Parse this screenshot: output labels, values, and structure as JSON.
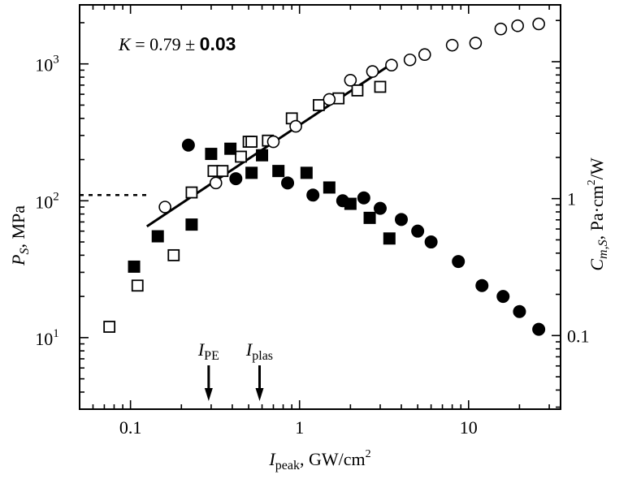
{
  "chart_data": {
    "type": "scatter",
    "xscale": "log",
    "yscale": "log",
    "xlim": [
      0.05,
      35
    ],
    "ylim": [
      3,
      2700
    ],
    "y2lim": [
      0.029,
      26
    ],
    "x_ticks": [
      {
        "value": 0.1,
        "label": "0.1"
      },
      {
        "value": 1,
        "label": "1"
      },
      {
        "value": 10,
        "label": "10"
      }
    ],
    "y_ticks": [
      {
        "value": 10,
        "base": "10",
        "exp": "1"
      },
      {
        "value": 100,
        "base": "10",
        "exp": "2"
      },
      {
        "value": 1000,
        "base": "10",
        "exp": "3"
      }
    ],
    "y2_ticks": [
      {
        "value": 0.1,
        "label": "0.1"
      },
      {
        "value": 1,
        "label": "1"
      }
    ],
    "xlabel": {
      "main": "I",
      "sub": "peak",
      "rest": ", GW/cm",
      "sup": "2"
    },
    "ylabel": {
      "main": "P",
      "sub": "S",
      "rest": ", MPa"
    },
    "y2label": {
      "main": "C",
      "sub": "m,S",
      "rest": ", Pa·cm",
      "sup": "2",
      "rest2": "/W"
    },
    "annotation": {
      "k_symbol": "K",
      "k_value": " = 0.79 ± ",
      "k_err": "0.03"
    },
    "arrows": [
      {
        "x": 0.29,
        "main": "I",
        "sub": "PE"
      },
      {
        "x": 0.58,
        "main": "I",
        "sub": "plas"
      }
    ],
    "fit_line": {
      "x": [
        0.125,
        3.5
      ],
      "y": [
        65,
        1000
      ]
    },
    "reference_line": {
      "y": 110,
      "x": [
        0.05,
        0.13
      ]
    },
    "grid": false,
    "series": [
      {
        "marker": "open-square",
        "x": [
          0.075,
          0.11,
          0.18,
          0.23,
          0.31,
          0.35,
          0.45,
          0.5,
          0.52,
          0.65,
          0.9,
          1.3,
          1.7,
          2.2,
          3.0
        ],
        "y": [
          12,
          24,
          40,
          115,
          165,
          165,
          210,
          270,
          270,
          275,
          400,
          500,
          560,
          640,
          680
        ]
      },
      {
        "marker": "filled-square",
        "x": [
          0.105,
          0.145,
          0.23,
          0.3,
          0.39,
          0.52,
          0.6,
          0.75,
          1.1,
          1.5,
          2.0,
          2.6,
          3.4
        ],
        "y": [
          33,
          55,
          67,
          220,
          240,
          160,
          215,
          165,
          160,
          125,
          95,
          75,
          53
        ]
      },
      {
        "marker": "filled-circle",
        "x": [
          0.22,
          0.42,
          0.85,
          1.2,
          1.8,
          2.4,
          3.0,
          4.0,
          5.0,
          6.0,
          8.7,
          12,
          16,
          20,
          26
        ],
        "y": [
          255,
          145,
          135,
          110,
          100,
          105,
          88,
          73,
          60,
          50,
          36,
          24,
          20,
          15.5,
          11.5
        ]
      },
      {
        "marker": "open-circle",
        "x": [
          0.16,
          0.32,
          0.7,
          0.95,
          1.5,
          2.0,
          2.7,
          3.5,
          4.5,
          5.5,
          8.0,
          11,
          15.5,
          19.5,
          26
        ],
        "y": [
          90,
          135,
          270,
          350,
          550,
          760,
          880,
          980,
          1070,
          1170,
          1370,
          1420,
          1800,
          1900,
          1960
        ]
      }
    ]
  }
}
